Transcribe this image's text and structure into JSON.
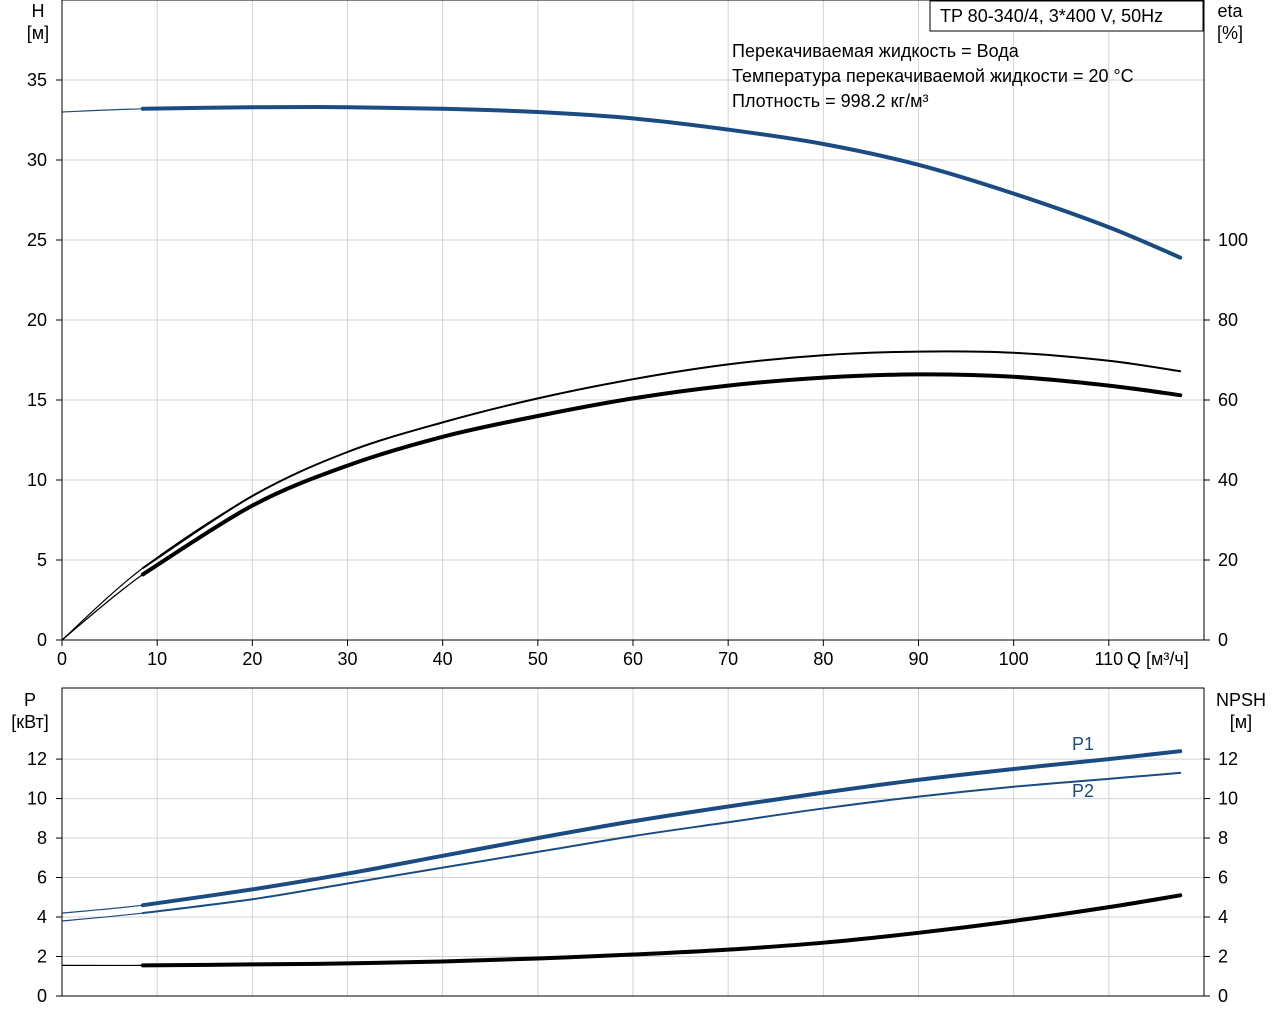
{
  "chart_data": {
    "type": "line",
    "title_box": "TP 80-340/4, 3*400 V, 50Hz",
    "info_lines": [
      "Перекачиваемая жидкость = Вода",
      "Температура перекачиваемой жидкости = 20 °C",
      "Плотность = 998.2 кг/м³"
    ],
    "colors": {
      "blue": "#1a4c82",
      "black": "#000000",
      "grid": "#d3d3d3"
    },
    "x_axis": {
      "label": "Q [м³/ч]",
      "range": [
        0,
        120
      ],
      "ticks": [
        0,
        10,
        20,
        30,
        40,
        50,
        60,
        70,
        80,
        90,
        100,
        110
      ]
    },
    "top_plot": {
      "left_axis": {
        "label_line1": "H",
        "label_line2": "[м]",
        "range": [
          0,
          40
        ],
        "ticks": [
          0,
          5,
          10,
          15,
          20,
          25,
          30,
          35
        ]
      },
      "right_axis": {
        "label_line1": "eta",
        "label_line2": "[%]",
        "range": [
          0,
          160
        ],
        "ticks": [
          0,
          20,
          40,
          60,
          80,
          100
        ]
      },
      "series": [
        {
          "id": "H",
          "axis": "left",
          "color": "blue",
          "style": "thick",
          "op_start": 8.5,
          "x": [
            0,
            8.5,
            20,
            30,
            40,
            50,
            60,
            70,
            80,
            90,
            100,
            110,
            117.5
          ],
          "y": [
            33,
            33.2,
            33.3,
            33.3,
            33.2,
            33.0,
            32.6,
            31.9,
            31.0,
            29.7,
            27.9,
            25.8,
            23.9
          ]
        },
        {
          "id": "eta1",
          "axis": "right",
          "color": "black",
          "style": "thin",
          "op_start": 8.5,
          "x": [
            0,
            8.5,
            20,
            30,
            40,
            50,
            60,
            70,
            80,
            90,
            100,
            110,
            117.5
          ],
          "y": [
            0,
            18,
            36,
            47,
            54.4,
            60.4,
            65.2,
            68.9,
            71.2,
            72.1,
            71.8,
            69.8,
            67.2
          ]
        },
        {
          "id": "eta2",
          "axis": "right",
          "color": "black",
          "style": "thick",
          "op_start": 8.5,
          "x": [
            0,
            8.5,
            20,
            30,
            40,
            50,
            60,
            70,
            80,
            90,
            100,
            110,
            117.5
          ],
          "y": [
            0,
            16.4,
            33.6,
            43.6,
            50.8,
            56,
            60.4,
            63.6,
            65.6,
            66.4,
            65.8,
            63.6,
            61.2
          ]
        }
      ]
    },
    "bottom_plot": {
      "left_axis": {
        "label_line1": "P",
        "label_line2": "[кВт]",
        "range": [
          0,
          15.6
        ],
        "ticks": [
          0,
          2,
          4,
          6,
          8,
          10,
          12
        ]
      },
      "right_axis": {
        "label_line1": "NPSH",
        "label_line2": "[м]",
        "range": [
          0,
          15.6
        ],
        "ticks": [
          0,
          2,
          4,
          6,
          8,
          10,
          12
        ]
      },
      "series": [
        {
          "id": "P1",
          "name": "P1",
          "axis": "left",
          "color": "blue",
          "style": "thick",
          "op_start": 8.5,
          "x": [
            0,
            8.5,
            20,
            30,
            40,
            50,
            60,
            70,
            80,
            90,
            100,
            110,
            117.5
          ],
          "y": [
            4.2,
            4.6,
            5.4,
            6.2,
            7.1,
            8.0,
            8.85,
            9.6,
            10.3,
            10.95,
            11.5,
            12.0,
            12.4
          ]
        },
        {
          "id": "P2",
          "name": "P2",
          "axis": "left",
          "color": "blue",
          "style": "thin",
          "op_start": 8.5,
          "x": [
            0,
            8.5,
            20,
            30,
            40,
            50,
            60,
            70,
            80,
            90,
            100,
            110,
            117.5
          ],
          "y": [
            3.8,
            4.2,
            4.9,
            5.7,
            6.5,
            7.3,
            8.1,
            8.8,
            9.5,
            10.1,
            10.6,
            11.0,
            11.3
          ]
        },
        {
          "id": "NPSH",
          "axis": "right",
          "color": "black",
          "style": "thick",
          "op_start": 8.5,
          "x": [
            0,
            8.5,
            20,
            30,
            40,
            50,
            60,
            70,
            80,
            90,
            100,
            110,
            117.5
          ],
          "y": [
            1.55,
            1.55,
            1.6,
            1.65,
            1.75,
            1.9,
            2.1,
            2.35,
            2.7,
            3.2,
            3.8,
            4.5,
            5.1
          ]
        }
      ]
    }
  }
}
